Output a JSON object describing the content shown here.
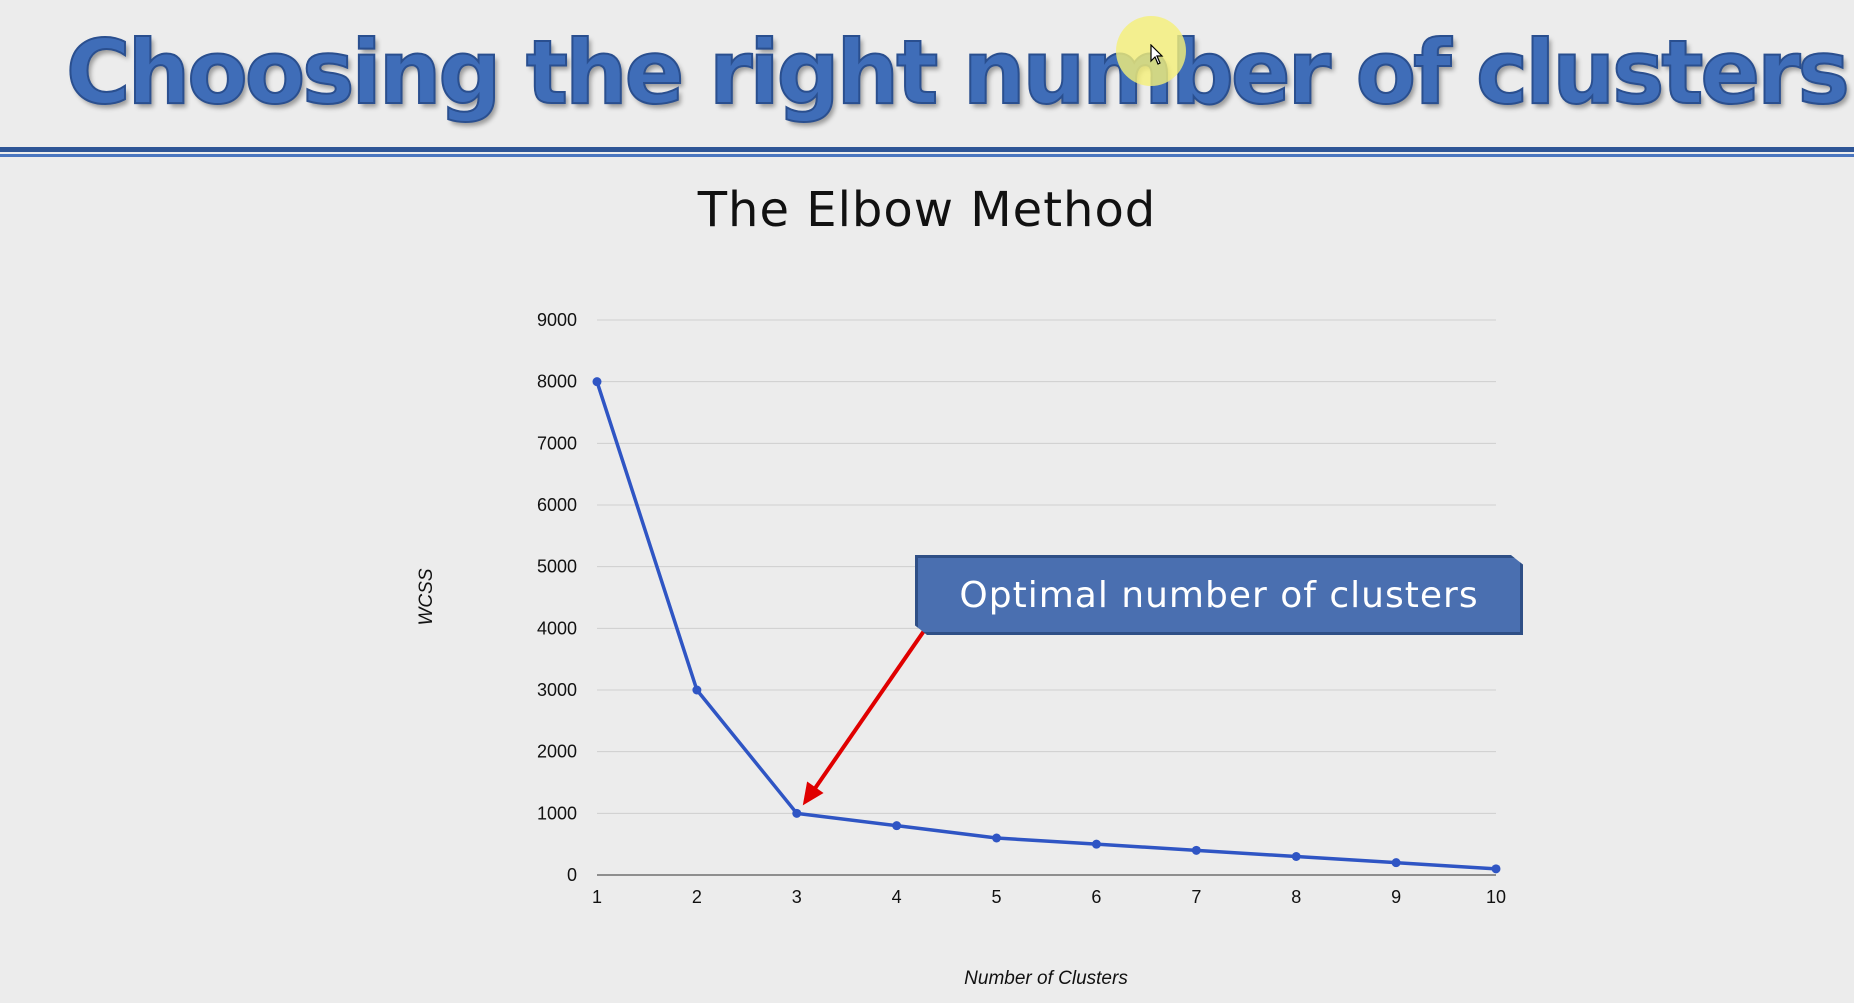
{
  "slide": {
    "title": "Choosing the right number of clusters"
  },
  "colors": {
    "title": "#3f6db8",
    "rule": "#2e5596",
    "line": "#2f55c4",
    "arrow": "#e00000",
    "callout_bg": "#4a6fb0"
  },
  "callout": {
    "text": "Optimal number of clusters",
    "points_to_x": 3
  },
  "chart_data": {
    "type": "line",
    "title": "The Elbow Method",
    "xlabel": "Number of Clusters",
    "ylabel": "WCSS",
    "x": [
      1,
      2,
      3,
      4,
      5,
      6,
      7,
      8,
      9,
      10
    ],
    "series": [
      {
        "values": [
          8000,
          3000,
          1000,
          800,
          600,
          500,
          400,
          300,
          200,
          100
        ]
      }
    ],
    "yticks": [
      0,
      1000,
      2000,
      3000,
      4000,
      5000,
      6000,
      7000,
      8000,
      9000
    ],
    "xticks": [
      1,
      2,
      3,
      4,
      5,
      6,
      7,
      8,
      9,
      10
    ],
    "ylim": [
      0,
      9000
    ],
    "xlim": [
      1,
      10
    ],
    "grid": true,
    "markers": true
  },
  "icons": [
    "cursor-icon"
  ]
}
